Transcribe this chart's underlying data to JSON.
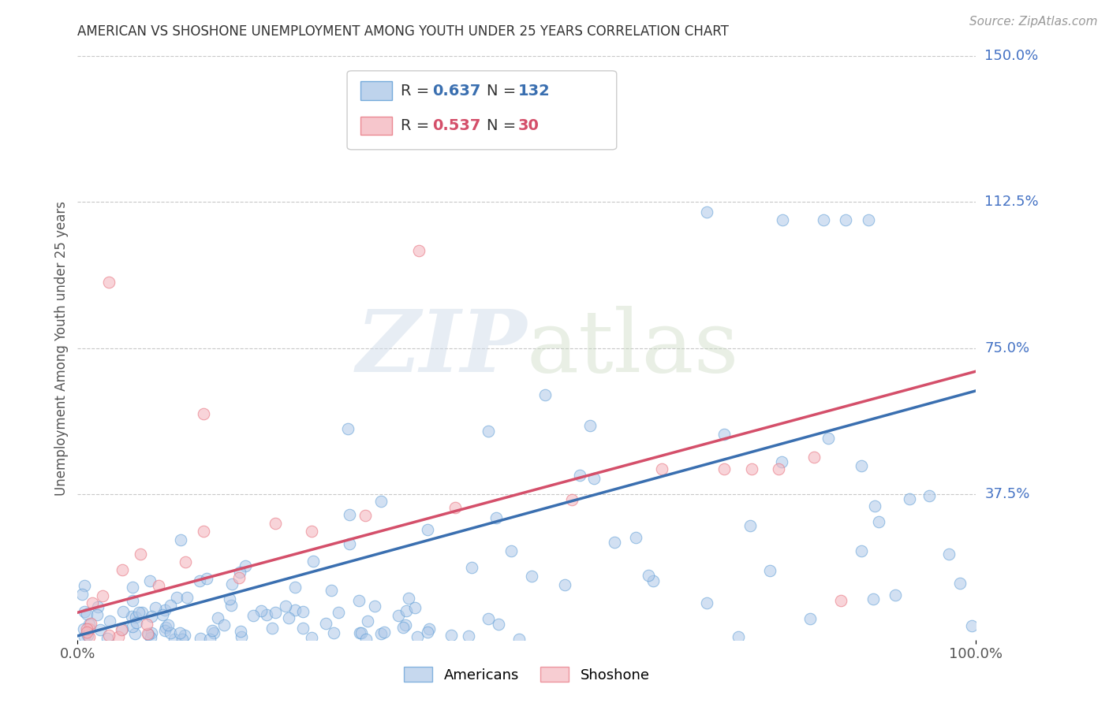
{
  "title": "AMERICAN VS SHOSHONE UNEMPLOYMENT AMONG YOUTH UNDER 25 YEARS CORRELATION CHART",
  "source": "Source: ZipAtlas.com",
  "ylabel_label": "Unemployment Among Youth under 25 years",
  "watermark_zip": "ZIP",
  "watermark_atlas": "atlas",
  "legend_blue_r": "0.637",
  "legend_blue_n": "132",
  "legend_pink_r": "0.537",
  "legend_pink_n": "30",
  "blue_fill": "#aec8e8",
  "blue_edge": "#5b9bd5",
  "blue_line": "#3a6fb0",
  "pink_fill": "#f4b8c0",
  "pink_edge": "#e8737f",
  "pink_line": "#d44f6a",
  "xlim": [
    0.0,
    1.0
  ],
  "ylim": [
    0.0,
    1.5
  ],
  "yticks": [
    0.0,
    0.375,
    0.75,
    1.125,
    1.5
  ],
  "ytick_labels": [
    "",
    "37.5%",
    "75.0%",
    "112.5%",
    "150.0%"
  ],
  "xtick_labels": [
    "0.0%",
    "100.0%"
  ],
  "background_color": "#ffffff",
  "grid_color": "#c8c8c8",
  "title_color": "#333333",
  "source_color": "#999999",
  "ylabel_color": "#555555",
  "tick_color": "#4472c4"
}
